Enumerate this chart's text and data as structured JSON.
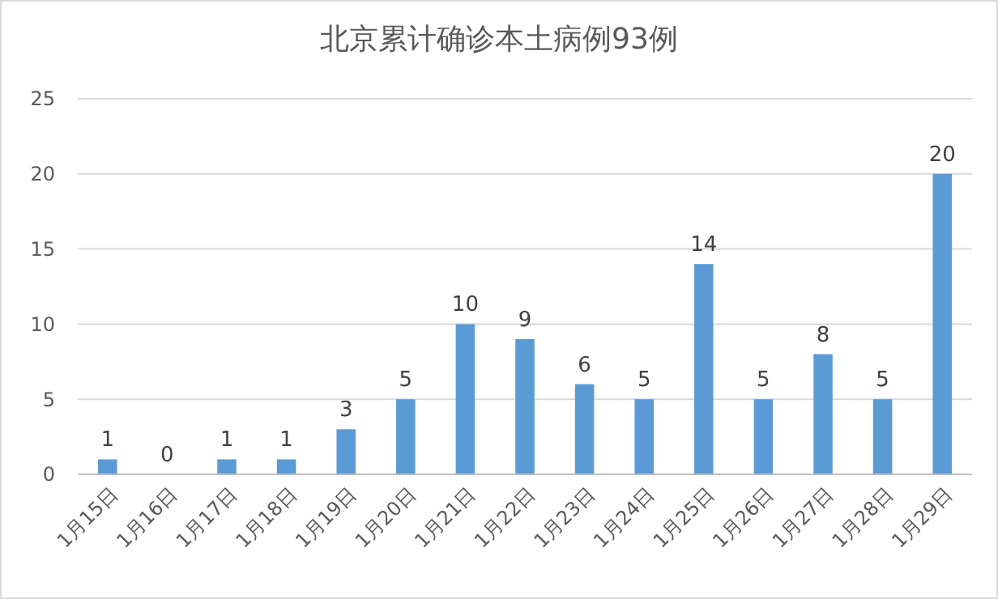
{
  "chart_data": {
    "type": "bar",
    "title": "北京累计确诊本土病例93例",
    "categories": [
      "1月15日",
      "1月16日",
      "1月17日",
      "1月18日",
      "1月19日",
      "1月20日",
      "1月21日",
      "1月22日",
      "1月23日",
      "1月24日",
      "1月25日",
      "1月26日",
      "1月27日",
      "1月28日",
      "1月29日"
    ],
    "values": [
      1,
      0,
      1,
      1,
      3,
      5,
      10,
      9,
      6,
      5,
      14,
      5,
      8,
      5,
      20
    ],
    "color": "#5b9bd5",
    "ylim": [
      0,
      25
    ],
    "yticks": [
      0,
      5,
      10,
      15,
      20,
      25
    ],
    "grid": "y",
    "data_labels": true
  }
}
